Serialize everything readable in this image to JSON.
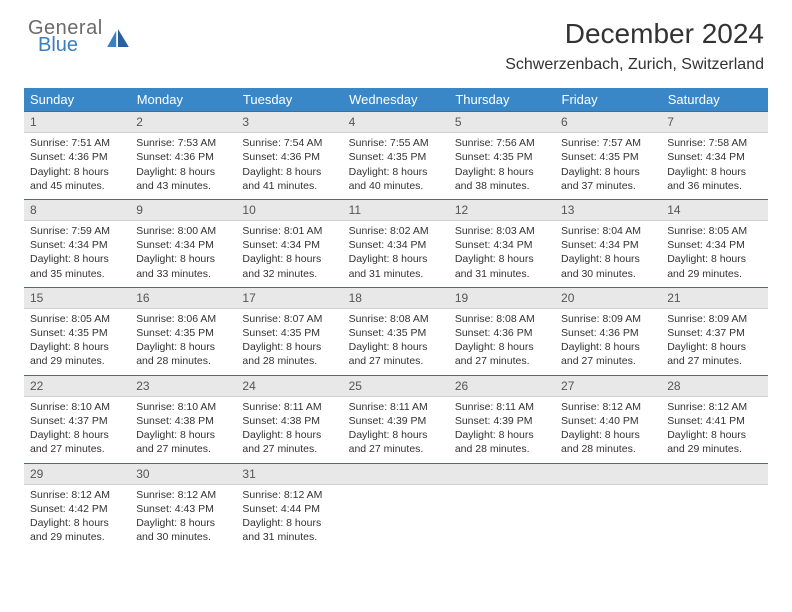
{
  "brand": {
    "main": "General",
    "sub": "Blue"
  },
  "title": "December 2024",
  "location": "Schwerzenbach, Zurich, Switzerland",
  "colors": {
    "header_bg": "#3a87c7",
    "header_text": "#ffffff",
    "daynum_bg": "#e8e8e8",
    "rule": "#3a6fa0",
    "logo_gray": "#6b6b6b",
    "logo_blue": "#3a7fbf"
  },
  "days_of_week": [
    "Sunday",
    "Monday",
    "Tuesday",
    "Wednesday",
    "Thursday",
    "Friday",
    "Saturday"
  ],
  "weeks": [
    [
      {
        "n": "1",
        "sr": "7:51 AM",
        "ss": "4:36 PM",
        "dl": "8 hours and 45 minutes."
      },
      {
        "n": "2",
        "sr": "7:53 AM",
        "ss": "4:36 PM",
        "dl": "8 hours and 43 minutes."
      },
      {
        "n": "3",
        "sr": "7:54 AM",
        "ss": "4:36 PM",
        "dl": "8 hours and 41 minutes."
      },
      {
        "n": "4",
        "sr": "7:55 AM",
        "ss": "4:35 PM",
        "dl": "8 hours and 40 minutes."
      },
      {
        "n": "5",
        "sr": "7:56 AM",
        "ss": "4:35 PM",
        "dl": "8 hours and 38 minutes."
      },
      {
        "n": "6",
        "sr": "7:57 AM",
        "ss": "4:35 PM",
        "dl": "8 hours and 37 minutes."
      },
      {
        "n": "7",
        "sr": "7:58 AM",
        "ss": "4:34 PM",
        "dl": "8 hours and 36 minutes."
      }
    ],
    [
      {
        "n": "8",
        "sr": "7:59 AM",
        "ss": "4:34 PM",
        "dl": "8 hours and 35 minutes."
      },
      {
        "n": "9",
        "sr": "8:00 AM",
        "ss": "4:34 PM",
        "dl": "8 hours and 33 minutes."
      },
      {
        "n": "10",
        "sr": "8:01 AM",
        "ss": "4:34 PM",
        "dl": "8 hours and 32 minutes."
      },
      {
        "n": "11",
        "sr": "8:02 AM",
        "ss": "4:34 PM",
        "dl": "8 hours and 31 minutes."
      },
      {
        "n": "12",
        "sr": "8:03 AM",
        "ss": "4:34 PM",
        "dl": "8 hours and 31 minutes."
      },
      {
        "n": "13",
        "sr": "8:04 AM",
        "ss": "4:34 PM",
        "dl": "8 hours and 30 minutes."
      },
      {
        "n": "14",
        "sr": "8:05 AM",
        "ss": "4:34 PM",
        "dl": "8 hours and 29 minutes."
      }
    ],
    [
      {
        "n": "15",
        "sr": "8:05 AM",
        "ss": "4:35 PM",
        "dl": "8 hours and 29 minutes."
      },
      {
        "n": "16",
        "sr": "8:06 AM",
        "ss": "4:35 PM",
        "dl": "8 hours and 28 minutes."
      },
      {
        "n": "17",
        "sr": "8:07 AM",
        "ss": "4:35 PM",
        "dl": "8 hours and 28 minutes."
      },
      {
        "n": "18",
        "sr": "8:08 AM",
        "ss": "4:35 PM",
        "dl": "8 hours and 27 minutes."
      },
      {
        "n": "19",
        "sr": "8:08 AM",
        "ss": "4:36 PM",
        "dl": "8 hours and 27 minutes."
      },
      {
        "n": "20",
        "sr": "8:09 AM",
        "ss": "4:36 PM",
        "dl": "8 hours and 27 minutes."
      },
      {
        "n": "21",
        "sr": "8:09 AM",
        "ss": "4:37 PM",
        "dl": "8 hours and 27 minutes."
      }
    ],
    [
      {
        "n": "22",
        "sr": "8:10 AM",
        "ss": "4:37 PM",
        "dl": "8 hours and 27 minutes."
      },
      {
        "n": "23",
        "sr": "8:10 AM",
        "ss": "4:38 PM",
        "dl": "8 hours and 27 minutes."
      },
      {
        "n": "24",
        "sr": "8:11 AM",
        "ss": "4:38 PM",
        "dl": "8 hours and 27 minutes."
      },
      {
        "n": "25",
        "sr": "8:11 AM",
        "ss": "4:39 PM",
        "dl": "8 hours and 27 minutes."
      },
      {
        "n": "26",
        "sr": "8:11 AM",
        "ss": "4:39 PM",
        "dl": "8 hours and 28 minutes."
      },
      {
        "n": "27",
        "sr": "8:12 AM",
        "ss": "4:40 PM",
        "dl": "8 hours and 28 minutes."
      },
      {
        "n": "28",
        "sr": "8:12 AM",
        "ss": "4:41 PM",
        "dl": "8 hours and 29 minutes."
      }
    ],
    [
      {
        "n": "29",
        "sr": "8:12 AM",
        "ss": "4:42 PM",
        "dl": "8 hours and 29 minutes."
      },
      {
        "n": "30",
        "sr": "8:12 AM",
        "ss": "4:43 PM",
        "dl": "8 hours and 30 minutes."
      },
      {
        "n": "31",
        "sr": "8:12 AM",
        "ss": "4:44 PM",
        "dl": "8 hours and 31 minutes."
      },
      null,
      null,
      null,
      null
    ]
  ],
  "labels": {
    "sunrise": "Sunrise:",
    "sunset": "Sunset:",
    "daylight": "Daylight:"
  }
}
